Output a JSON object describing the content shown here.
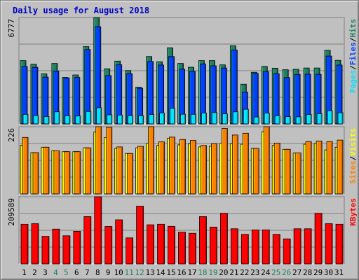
{
  "title": "Daily usage for August 2018",
  "colors": {
    "background": "#c0c0c0",
    "title": "#0000c0",
    "hits": "#208060",
    "files": "#0040ff",
    "pages": "#00e0ff",
    "visits": "#ffff00",
    "sites": "#ff8000",
    "kbytes": "#ff0000",
    "weekend_label": "#208060",
    "weekday_label": "#000000"
  },
  "chart_data": [
    {
      "type": "bar",
      "name": "hits-files-pages",
      "max_label": "6777",
      "axis_label_parts": [
        "Pages",
        "Files",
        "Hits"
      ],
      "categories": [
        "1",
        "2",
        "3",
        "4",
        "5",
        "6",
        "7",
        "8",
        "9",
        "10",
        "11",
        "12",
        "13",
        "14",
        "15",
        "16",
        "17",
        "18",
        "19",
        "20",
        "21",
        "22",
        "23",
        "24",
        "25",
        "26",
        "27",
        "28",
        "29",
        "30",
        "31"
      ],
      "weekend_days": [
        "4",
        "5",
        "11",
        "12",
        "18",
        "19",
        "25",
        "26"
      ],
      "ylim": [
        0,
        6777
      ],
      "series": [
        {
          "name": "Hits",
          "values": [
            4030,
            3800,
            3190,
            3850,
            2960,
            3120,
            4920,
            6777,
            3510,
            4000,
            3400,
            2340,
            4290,
            3960,
            4850,
            3850,
            3610,
            4030,
            4030,
            3760,
            4980,
            2530,
            3290,
            3660,
            3550,
            3450,
            3480,
            3560,
            3560,
            4690,
            4050
          ]
        },
        {
          "name": "Files",
          "values": [
            3660,
            3600,
            2980,
            3370,
            2930,
            2960,
            4740,
            6190,
            3080,
            3770,
            3200,
            2270,
            3980,
            3750,
            4290,
            3490,
            3350,
            3820,
            3700,
            3560,
            4710,
            2030,
            3220,
            3330,
            3200,
            2950,
            3150,
            3170,
            3160,
            4320,
            3750
          ]
        },
        {
          "name": "Pages",
          "values": [
            610,
            530,
            470,
            770,
            520,
            500,
            790,
            1030,
            580,
            560,
            520,
            520,
            600,
            700,
            990,
            620,
            610,
            690,
            720,
            640,
            770,
            930,
            440,
            690,
            520,
            460,
            450,
            600,
            650,
            840,
            710
          ]
        }
      ]
    },
    {
      "type": "bar",
      "name": "visits-sites",
      "max_label": "226",
      "axis_label_parts": [
        "Sites",
        "Visits"
      ],
      "categories": [
        "1",
        "2",
        "3",
        "4",
        "5",
        "6",
        "7",
        "8",
        "9",
        "10",
        "11",
        "12",
        "13",
        "14",
        "15",
        "16",
        "17",
        "18",
        "19",
        "20",
        "21",
        "22",
        "23",
        "24",
        "25",
        "26",
        "27",
        "28",
        "29",
        "30",
        "31"
      ],
      "ylim": [
        0,
        226
      ],
      "series": [
        {
          "name": "Visits",
          "values": [
            163,
            139,
            157,
            145,
            142,
            142,
            155,
            208,
            189,
            153,
            136,
            155,
            170,
            163,
            187,
            165,
            168,
            158,
            160,
            170,
            169,
            167,
            153,
            209,
            163,
            150,
            138,
            167,
            169,
            148,
            157
          ]
        },
        {
          "name": "Sites",
          "values": [
            190,
            139,
            157,
            145,
            142,
            142,
            155,
            226,
            224,
            158,
            136,
            160,
            226,
            175,
            191,
            183,
            180,
            163,
            169,
            220,
            198,
            204,
            153,
            226,
            171,
            150,
            138,
            176,
            178,
            176,
            181
          ]
        }
      ]
    },
    {
      "type": "bar",
      "name": "kbytes",
      "max_label": "209589",
      "axis_label_parts": [
        "KBytes"
      ],
      "categories": [
        "1",
        "2",
        "3",
        "4",
        "5",
        "6",
        "7",
        "8",
        "9",
        "10",
        "11",
        "12",
        "13",
        "14",
        "15",
        "16",
        "17",
        "18",
        "19",
        "20",
        "21",
        "22",
        "23",
        "24",
        "25",
        "26",
        "27",
        "28",
        "29",
        "30",
        "31"
      ],
      "ylim": [
        0,
        209589
      ],
      "series": [
        {
          "name": "KBytes",
          "values": [
            123720,
            125460,
            85970,
            108570,
            87710,
            101620,
            147560,
            209589,
            116660,
            137520,
            81190,
            180060,
            121990,
            123720,
            117240,
            98990,
            95550,
            147560,
            114930,
            157990,
            109620,
            92180,
            106070,
            106070,
            92180,
            78100,
            109620,
            109620,
            158000,
            125460,
            123720
          ]
        }
      ]
    }
  ]
}
